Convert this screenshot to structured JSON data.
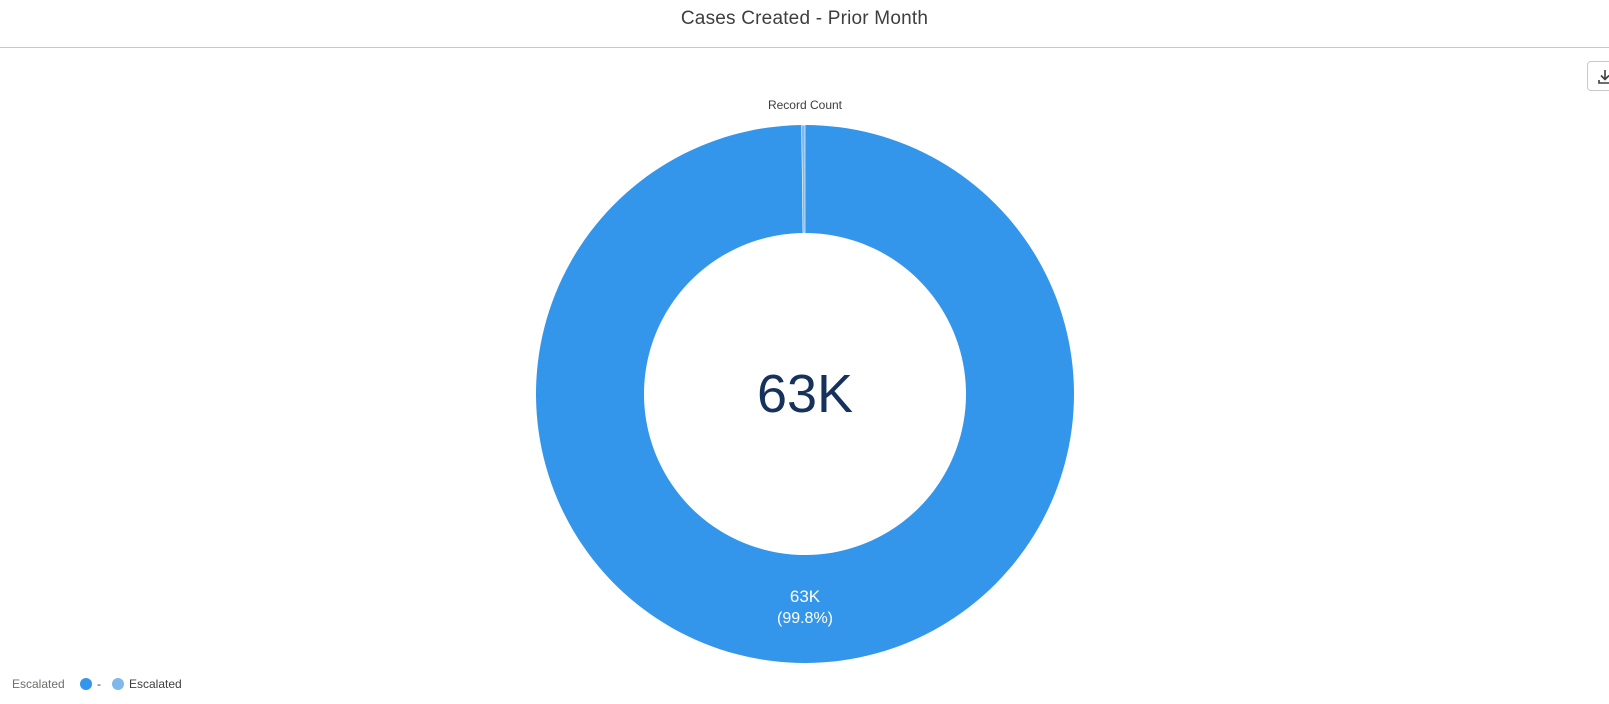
{
  "header": {
    "title": "Cases Created - Prior Month"
  },
  "toolbar": {
    "download_icon": "download-icon"
  },
  "chart_data": {
    "type": "pie",
    "donut": true,
    "measure_label": "Record Count",
    "center_value": "63K",
    "total_display": "63K",
    "legend_title": "Escalated",
    "legend_placement": "bottom-left",
    "categories": [
      "-",
      "Escalated"
    ],
    "values": [
      99.8,
      0.2
    ],
    "colors": [
      "#3496ea",
      "#7fb8ec"
    ],
    "slice_labels": [
      {
        "value": "63K",
        "percent": "(99.8%)"
      }
    ]
  }
}
